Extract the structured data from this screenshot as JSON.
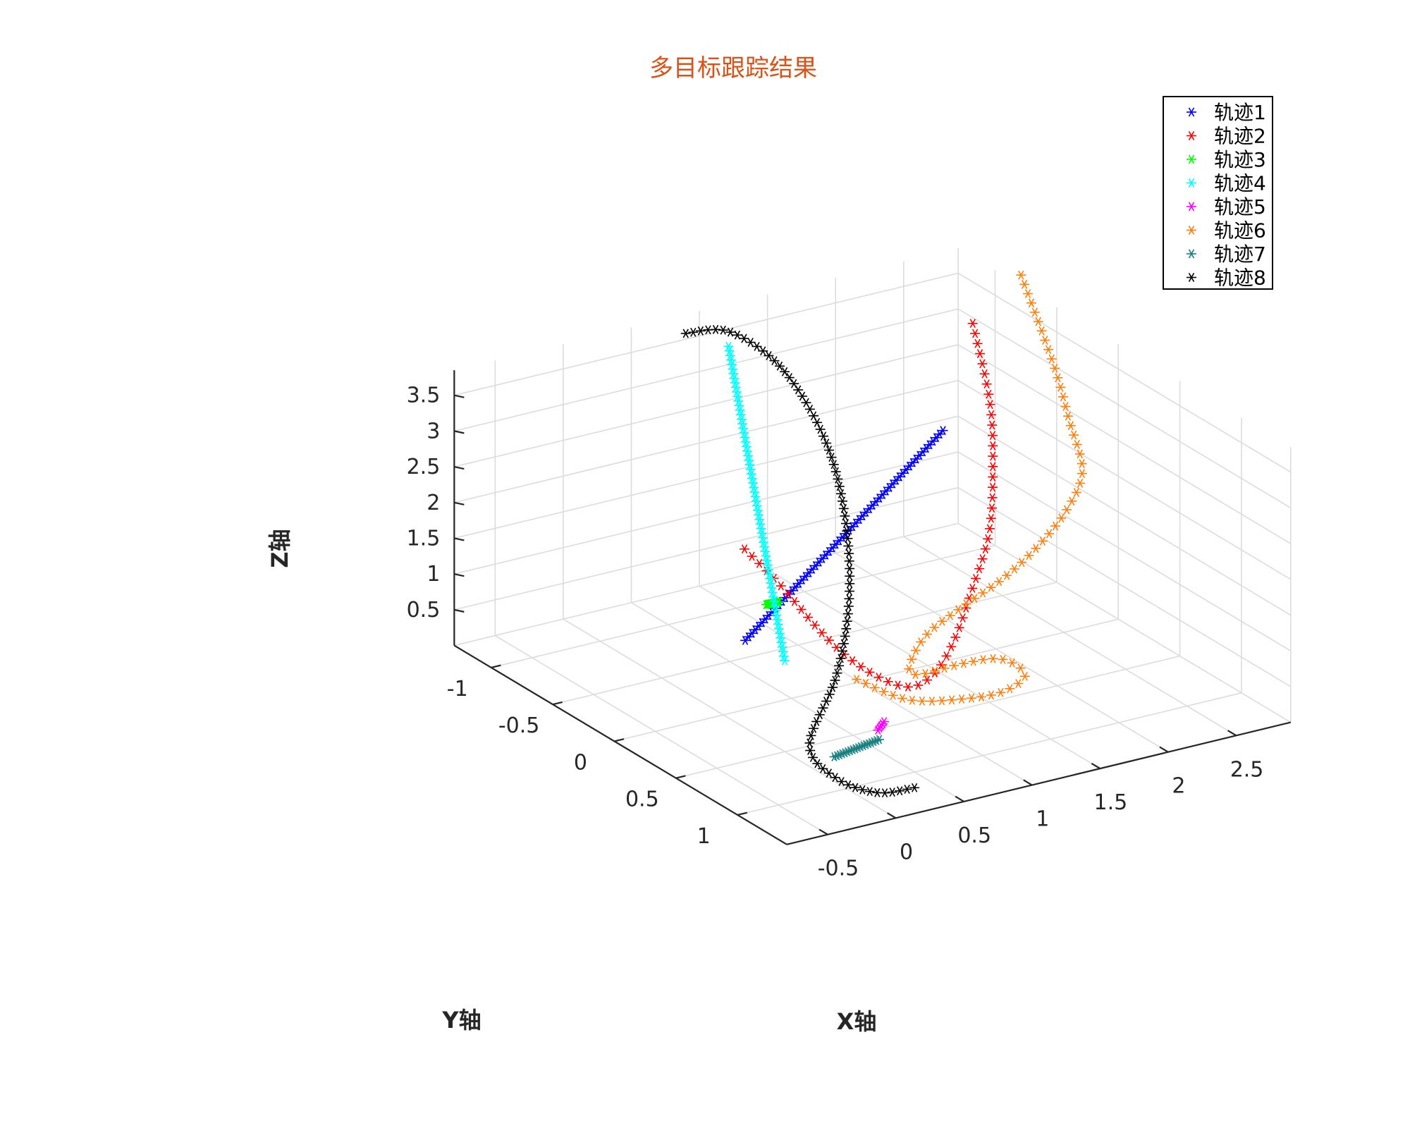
{
  "chart_data": {
    "type": "scatter",
    "title": "多目标跟踪结果",
    "xlabel": "X轴",
    "ylabel": "Y轴",
    "zlabel": "Z轴",
    "xlim": [
      -0.8,
      2.9
    ],
    "ylim": [
      -1.3,
      1.4
    ],
    "zlim": [
      0,
      3.85
    ],
    "xticks": [
      -0.5,
      0,
      0.5,
      1,
      1.5,
      2,
      2.5
    ],
    "xtick_labels": [
      "-0.5",
      "0",
      "0.5",
      "1",
      "1.5",
      "2",
      "2.5"
    ],
    "yticks": [
      -1,
      -0.5,
      0,
      0.5,
      1
    ],
    "ytick_labels": [
      "-1",
      "-0.5",
      "0",
      "0.5",
      "1"
    ],
    "zticks": [
      0.5,
      1,
      1.5,
      2,
      2.5,
      3,
      3.5
    ],
    "ztick_labels": [
      "0.5",
      "1",
      "1.5",
      "2",
      "2.5",
      "3",
      "3.5"
    ],
    "grid": true,
    "legend_position": "top-right",
    "marker": "*",
    "series": [
      {
        "name": "轨迹1",
        "color": "#0000FF",
        "kind": "line",
        "from": [
          0.64,
          -0.53,
          0.2
        ],
        "to": [
          1.64,
          -0.03,
          3.19
        ],
        "n": 60
      },
      {
        "name": "轨迹2",
        "color": "#FF0000",
        "kind": "curve",
        "points": [
          [
            1.06,
            -1.0,
            0.8
          ],
          [
            0.95,
            -0.6,
            0.78
          ],
          [
            0.77,
            0.0,
            0.7
          ],
          [
            0.65,
            0.45,
            0.78
          ],
          [
            0.58,
            0.85,
            1.0
          ],
          [
            0.8,
            0.82,
            1.04
          ],
          [
            1.15,
            0.6,
            1.12
          ],
          [
            1.55,
            0.3,
            1.32
          ],
          [
            1.95,
            0.0,
            1.63
          ],
          [
            2.25,
            -0.3,
            2.05
          ],
          [
            2.5,
            -0.6,
            2.6
          ],
          [
            2.6,
            -0.85,
            3.4
          ]
        ],
        "n": 60
      },
      {
        "name": "轨迹3",
        "color": "#00FF00",
        "kind": "line",
        "from": [
          0.11,
          0.33,
          1.87
        ],
        "to": [
          0.45,
          -0.15,
          1.18
        ],
        "n": 14
      },
      {
        "name": "轨迹4",
        "color": "#00FFFF",
        "kind": "line",
        "from": [
          0.45,
          0.0,
          0.55
        ],
        "to": [
          0.88,
          -0.93,
          3.79
        ],
        "n": 70
      },
      {
        "name": "轨迹5",
        "color": "#FF00FF",
        "kind": "line",
        "from": [
          0.05,
          1.2,
          1.0
        ],
        "to": [
          0.15,
          1.14,
          1.01
        ],
        "n": 5
      },
      {
        "name": "轨迹6",
        "color": "#FF7F0E",
        "kind": "curve",
        "points": [
          [
            3.0,
            -0.9,
            3.84
          ],
          [
            2.88,
            -0.5,
            3.04
          ],
          [
            2.72,
            -0.2,
            2.66
          ],
          [
            2.5,
            0.15,
            2.42
          ],
          [
            2.25,
            0.3,
            2.14
          ],
          [
            1.9,
            0.45,
            1.94
          ],
          [
            1.55,
            0.55,
            1.75
          ],
          [
            1.2,
            0.6,
            1.56
          ],
          [
            0.85,
            0.7,
            1.43
          ],
          [
            0.55,
            0.9,
            1.33
          ],
          [
            0.5,
            1.05,
            1.42
          ],
          [
            0.75,
            1.1,
            1.5
          ],
          [
            0.95,
            1.2,
            1.58
          ],
          [
            0.95,
            1.4,
            1.57
          ],
          [
            0.7,
            1.5,
            1.55
          ],
          [
            0.45,
            1.45,
            1.51
          ],
          [
            0.18,
            1.3,
            1.47
          ],
          [
            0.12,
            0.95,
            1.42
          ]
        ],
        "n": 80
      },
      {
        "name": "轨迹7",
        "color": "#1A8080",
        "kind": "line",
        "from": [
          -0.18,
          1.1,
          0.63
        ],
        "to": [
          0.33,
          0.9,
          0.43
        ],
        "n": 18
      },
      {
        "name": "轨迹8",
        "color": "#000000",
        "kind": "curve",
        "points": [
          [
            0.3,
            1.22,
            0.1
          ],
          [
            0.0,
            1.25,
            0.2
          ],
          [
            -0.12,
            1.05,
            0.25
          ],
          [
            0.0,
            0.7,
            0.3
          ],
          [
            0.6,
            0.25,
            0.5
          ],
          [
            1.1,
            -0.2,
            0.78
          ],
          [
            1.5,
            -0.65,
            1.12
          ],
          [
            1.72,
            -1.0,
            1.65
          ],
          [
            1.72,
            -1.2,
            2.25
          ],
          [
            1.55,
            -1.3,
            2.9
          ],
          [
            1.25,
            -1.35,
            3.4
          ],
          [
            0.9,
            -1.3,
            3.58
          ]
        ],
        "n": 85
      }
    ]
  }
}
